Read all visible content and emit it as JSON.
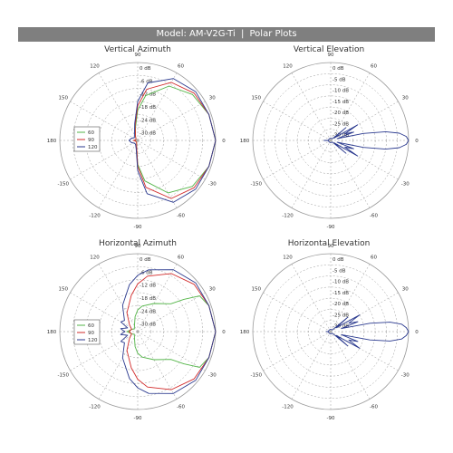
{
  "banner": {
    "model": "Model: AM-V2G-Ti",
    "separator": "|",
    "section": "Polar Plots"
  },
  "colors": {
    "series_60": "#53b548",
    "series_90": "#d22b2b",
    "series_120": "#2b3a8f",
    "grid": "#9a9a9a",
    "banner": "#7f7f7f"
  },
  "chart_data": [
    {
      "type": "polar-line",
      "title": "Vertical Azimuth",
      "angle_labels": [
        "0",
        "30",
        "60",
        "90",
        "120",
        "150",
        "180",
        "-150",
        "-120",
        "-90",
        "-60",
        "-30"
      ],
      "radial_labels": [
        "0 dB",
        "-6 dB",
        "-12 dB",
        "-18 dB",
        "-24 dB",
        "-30 dB"
      ],
      "r_range_db": [
        -36,
        0
      ],
      "legend": {
        "placement": "left",
        "entries": [
          "60",
          "90",
          "120"
        ]
      },
      "series": [
        {
          "name": "60",
          "color_key": "series_60",
          "angles": [
            0,
            20,
            40,
            60,
            80,
            90,
            100,
            120,
            140,
            160,
            180,
            200,
            220,
            240,
            260,
            270,
            280,
            300,
            320,
            340,
            360
          ],
          "values": [
            0,
            -1,
            -3,
            -7,
            -15,
            -22,
            -30,
            -34,
            -35,
            -35,
            -35,
            -35,
            -35,
            -35,
            -33,
            -25,
            -17,
            -8,
            -3,
            -1,
            0
          ]
        },
        {
          "name": "90",
          "color_key": "series_90",
          "angles": [
            0,
            20,
            40,
            60,
            80,
            90,
            100,
            120,
            140,
            160,
            180,
            200,
            220,
            240,
            260,
            270,
            280,
            300,
            320,
            340,
            360
          ],
          "values": [
            0,
            -1,
            -2,
            -5,
            -12,
            -20,
            -29,
            -34,
            -35,
            -35,
            -34,
            -35,
            -35,
            -35,
            -33,
            -24,
            -14,
            -5,
            -2,
            -1,
            0
          ]
        },
        {
          "name": "120",
          "color_key": "series_120",
          "angles": [
            0,
            20,
            40,
            60,
            80,
            90,
            100,
            120,
            140,
            160,
            180,
            200,
            220,
            240,
            260,
            270,
            280,
            300,
            320,
            340,
            360
          ],
          "values": [
            0,
            -1,
            -1,
            -3,
            -9,
            -18,
            -28,
            -33,
            -34,
            -33,
            -32,
            -33,
            -34,
            -34,
            -32,
            -22,
            -11,
            -3,
            -1,
            -1,
            0
          ]
        }
      ]
    },
    {
      "type": "polar-line",
      "title": "Vertical Elevation",
      "angle_labels": [
        "0",
        "30",
        "60",
        "90",
        "120",
        "150",
        "180",
        "-150",
        "-120",
        "-90",
        "-60",
        "-30"
      ],
      "radial_labels": [
        "0 dB",
        "-5 dB",
        "-10 dB",
        "-15 dB",
        "-20 dB",
        "-25 dB",
        "-30 dB"
      ],
      "r_range_db": [
        -35,
        0
      ],
      "series": [
        {
          "name": "",
          "color_key": "series_120",
          "angles": [
            0,
            3,
            6,
            9,
            12,
            16,
            20,
            25,
            30,
            35,
            40,
            45,
            55,
            70,
            90,
            120,
            150,
            175,
            180,
            185,
            210,
            240,
            270,
            290,
            305,
            315,
            320,
            325,
            330,
            335,
            340,
            344,
            348,
            351,
            354,
            357,
            360
          ],
          "values": [
            0,
            -1,
            -4,
            -10,
            -20,
            -32,
            -24,
            -28,
            -21,
            -33,
            -26,
            -34,
            -34,
            -34,
            -34,
            -34,
            -34,
            -34,
            -32,
            -34,
            -34,
            -34,
            -34,
            -34,
            -34,
            -34,
            -26,
            -33,
            -21,
            -28,
            -24,
            -32,
            -20,
            -10,
            -4,
            -1,
            0
          ]
        }
      ]
    },
    {
      "type": "polar-line",
      "title": "Horizontal Azimuth",
      "angle_labels": [
        "0",
        "30",
        "60",
        "90",
        "120",
        "150",
        "180",
        "-150",
        "-120",
        "-90",
        "-60",
        "-30"
      ],
      "radial_labels": [
        "0 dB",
        "-6 dB",
        "-12 dB",
        "-18 dB",
        "-24 dB",
        "-30 dB"
      ],
      "r_range_db": [
        -36,
        0
      ],
      "legend": {
        "placement": "left",
        "entries": [
          "60",
          "90",
          "120"
        ]
      },
      "series": [
        {
          "name": "60",
          "color_key": "series_60",
          "angles": [
            0,
            20,
            30,
            35,
            40,
            60,
            80,
            90,
            100,
            120,
            140,
            160,
            180,
            200,
            220,
            240,
            260,
            270,
            280,
            300,
            320,
            325,
            330,
            340,
            360
          ],
          "values": [
            0,
            -1,
            -3,
            -10,
            -16,
            -21,
            -24,
            -26,
            -29,
            -33,
            -34,
            -33,
            -31,
            -33,
            -34,
            -33,
            -29,
            -26,
            -24,
            -21,
            -16,
            -10,
            -3,
            -1,
            0
          ]
        },
        {
          "name": "90",
          "color_key": "series_90",
          "angles": [
            0,
            20,
            40,
            60,
            80,
            90,
            100,
            120,
            140,
            160,
            180,
            200,
            220,
            240,
            260,
            270,
            280,
            300,
            320,
            340,
            360
          ],
          "values": [
            0,
            -1,
            -2,
            -5,
            -10,
            -14,
            -19,
            -26,
            -31,
            -33,
            -32,
            -33,
            -31,
            -26,
            -19,
            -14,
            -10,
            -5,
            -2,
            -1,
            0
          ]
        },
        {
          "name": "120",
          "color_key": "series_120",
          "angles": [
            0,
            20,
            40,
            60,
            80,
            90,
            100,
            120,
            140,
            150,
            160,
            170,
            180,
            190,
            200,
            210,
            220,
            240,
            260,
            270,
            280,
            300,
            320,
            340,
            360
          ],
          "values": [
            0,
            -1,
            -1,
            -3,
            -7,
            -10,
            -14,
            -22,
            -28,
            -27,
            -31,
            -28,
            -30,
            -28,
            -31,
            -27,
            -28,
            -22,
            -14,
            -10,
            -7,
            -3,
            -1,
            -1,
            0
          ]
        }
      ]
    },
    {
      "type": "polar-line",
      "title": "Horizontal Elevation",
      "angle_labels": [
        "0",
        "30",
        "60",
        "90",
        "120",
        "150",
        "180",
        "-150",
        "-120",
        "-90",
        "-60",
        "-30"
      ],
      "radial_labels": [
        "0 dB",
        "-5 dB",
        "-10 dB",
        "-15 dB",
        "-20 dB",
        "-25 dB",
        "-30 dB"
      ],
      "r_range_db": [
        -35,
        0
      ],
      "series": [
        {
          "name": "",
          "color_key": "series_120",
          "angles": [
            0,
            3,
            6,
            9,
            12,
            16,
            20,
            25,
            30,
            35,
            40,
            45,
            55,
            70,
            90,
            120,
            150,
            175,
            180,
            185,
            210,
            240,
            270,
            290,
            305,
            315,
            320,
            325,
            330,
            335,
            340,
            344,
            348,
            351,
            354,
            357,
            360
          ],
          "values": [
            0,
            -1,
            -3,
            -8,
            -17,
            -30,
            -22,
            -26,
            -20,
            -32,
            -25,
            -34,
            -34,
            -34,
            -34,
            -34,
            -34,
            -34,
            -33,
            -34,
            -34,
            -34,
            -34,
            -34,
            -34,
            -34,
            -25,
            -32,
            -20,
            -26,
            -22,
            -30,
            -17,
            -8,
            -3,
            -1,
            0
          ]
        }
      ]
    }
  ]
}
